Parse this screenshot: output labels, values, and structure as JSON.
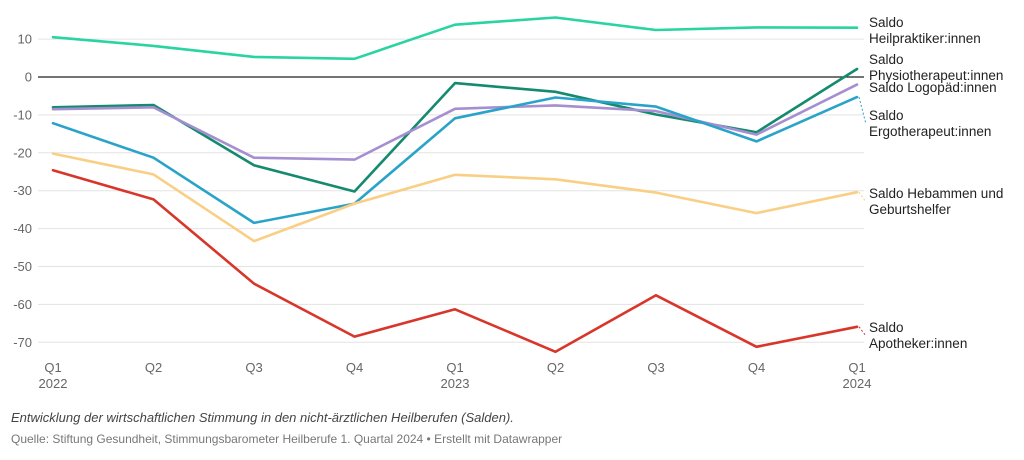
{
  "chart_data": {
    "type": "line",
    "title": "",
    "xlabel": "",
    "ylabel": "",
    "ylim": [
      -75,
      17
    ],
    "y_ticks": [
      10,
      0,
      -10,
      -20,
      -30,
      -40,
      -50,
      -60,
      -70
    ],
    "x": [
      "Q1 2022",
      "Q2 2022",
      "Q3 2022",
      "Q4 2022",
      "Q1 2023",
      "Q2 2023",
      "Q3 2023",
      "Q4 2023",
      "Q1 2024"
    ],
    "x_tick_labels": [
      {
        "quarter": "Q1",
        "year": "2022"
      },
      {
        "quarter": "Q2",
        "year": ""
      },
      {
        "quarter": "Q3",
        "year": ""
      },
      {
        "quarter": "Q4",
        "year": ""
      },
      {
        "quarter": "Q1",
        "year": "2023"
      },
      {
        "quarter": "Q2",
        "year": ""
      },
      {
        "quarter": "Q3",
        "year": ""
      },
      {
        "quarter": "Q4",
        "year": ""
      },
      {
        "quarter": "Q1",
        "year": "2024"
      }
    ],
    "grid": true,
    "legend": "direct labels at line ends (right)",
    "series": [
      {
        "name": "Saldo Heilpraktiker:innen",
        "label_lines": [
          "Saldo",
          "Heilpraktiker:innen"
        ],
        "color": "#2ad4a0",
        "values": [
          10.5,
          8.2,
          5.3,
          4.8,
          13.8,
          15.7,
          12.4,
          13.1,
          13.0
        ]
      },
      {
        "name": "Saldo Physiotherapeut:innen",
        "label_lines": [
          "Saldo",
          "Physiotherapeut:innen"
        ],
        "color": "#148a6e",
        "values": [
          -8.0,
          -7.4,
          -23.3,
          -30.2,
          -1.6,
          -3.9,
          -9.9,
          -14.6,
          2.1
        ]
      },
      {
        "name": "Saldo Logopäd:innen",
        "label_lines": [
          "Saldo Logopäd:innen"
        ],
        "color": "#a58fd1",
        "values": [
          -8.5,
          -8.0,
          -21.3,
          -21.8,
          -8.4,
          -7.5,
          -9.0,
          -15.2,
          -2.0
        ]
      },
      {
        "name": "Saldo Ergotherapeut:innen",
        "label_lines": [
          "Saldo",
          "Ergotherapeut:innen"
        ],
        "color": "#2aa3c9",
        "values": [
          -12.2,
          -21.3,
          -38.5,
          -33.4,
          -10.9,
          -5.4,
          -7.8,
          -17.0,
          -5.3
        ]
      },
      {
        "name": "Saldo Hebammen und Geburtshelfer",
        "label_lines": [
          "Saldo Hebammen und",
          "Geburtshelfer"
        ],
        "color": "#f9cf85",
        "values": [
          -20.2,
          -25.7,
          -43.3,
          -33.4,
          -25.8,
          -27.0,
          -30.5,
          -35.9,
          -30.4
        ]
      },
      {
        "name": "Saldo Apotheker:innen",
        "label_lines": [
          "Saldo",
          "Apotheker:innen"
        ],
        "color": "#d8362a",
        "values": [
          -24.6,
          -32.3,
          -54.5,
          -68.5,
          -61.3,
          -72.5,
          -57.6,
          -71.2,
          -65.9
        ]
      }
    ]
  },
  "caption": "Entwicklung der wirtschaftlichen Stimmung in den nicht-ärztlichen Heilberufen (Salden).",
  "source": "Quelle: Stiftung Gesundheit, Stimmungsbarometer Heilberufe 1. Quartal 2024 • Erstellt mit Datawrapper"
}
